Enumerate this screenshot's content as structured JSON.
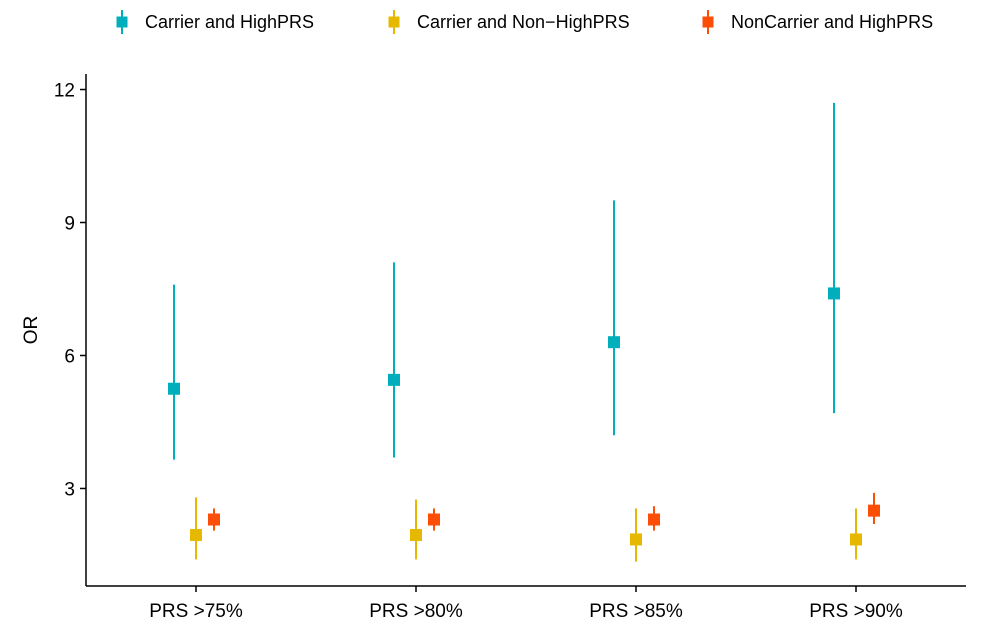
{
  "chart_data": {
    "type": "errorbar",
    "title": "",
    "xlabel": "",
    "ylabel": "OR",
    "categories": [
      "PRS >75%",
      "PRS >80%",
      "PRS >85%",
      "PRS >90%"
    ],
    "ylim": [
      0.8,
      12.35
    ],
    "yticks": [
      3,
      6,
      9,
      12
    ],
    "grid": false,
    "legend_position": "top",
    "series": [
      {
        "name": "Carrier  and HighPRS",
        "color": "#00AFBB",
        "values": [
          5.25,
          5.45,
          6.3,
          7.4
        ],
        "lower": [
          3.65,
          3.7,
          4.2,
          4.7
        ],
        "upper": [
          7.6,
          8.1,
          9.5,
          11.7
        ]
      },
      {
        "name": "Carrier and Non−HighPRS",
        "color": "#E7B800",
        "values": [
          1.95,
          1.95,
          1.85,
          1.85
        ],
        "lower": [
          1.4,
          1.4,
          1.35,
          1.4
        ],
        "upper": [
          2.8,
          2.75,
          2.55,
          2.55
        ]
      },
      {
        "name": "NonCarrier and HighPRS",
        "color": "#FC4E07",
        "values": [
          2.3,
          2.3,
          2.3,
          2.5
        ],
        "lower": [
          2.05,
          2.05,
          2.05,
          2.2
        ],
        "upper": [
          2.55,
          2.55,
          2.6,
          2.9
        ]
      }
    ]
  }
}
